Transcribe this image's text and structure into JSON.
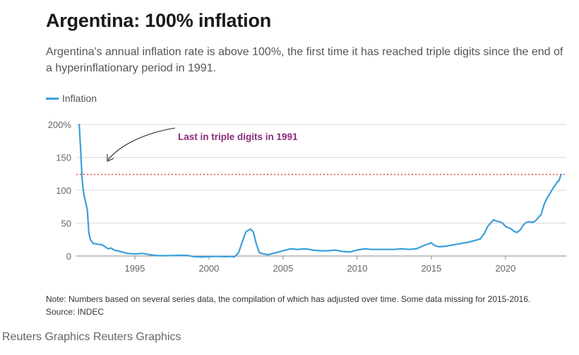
{
  "title": "Argentina: 100% inflation",
  "subtitle": "Argentina's annual inflation rate is above 100%, the first time it has reached triple digits since the end of a hyperinflationary period in 1991.",
  "note": "Note: Numbers based on several series data, the compilation of which has adjusted over time. Some data missing for 2015-2016.",
  "source": "Source: INDEC",
  "credit": "Reuters Graphics Reuters Graphics",
  "colors": {
    "line": "#3a9fd9",
    "annotation": "#8a2b7d",
    "threshold": "#e0484d",
    "grid": "#d9d9d9",
    "axis": "#666666"
  },
  "chart_data": {
    "type": "line",
    "title": "Argentina: 100% inflation",
    "xlabel": "",
    "ylabel": "",
    "xlim": [
      1991.05,
      2024.1
    ],
    "ylim": [
      0,
      200
    ],
    "yticks": [
      {
        "value": 0,
        "label": "0"
      },
      {
        "value": 50,
        "label": "50"
      },
      {
        "value": 100,
        "label": "100"
      },
      {
        "value": 150,
        "label": "150"
      },
      {
        "value": 200,
        "label": "200%"
      }
    ],
    "xticks": [
      {
        "value": 1995,
        "label": "1995"
      },
      {
        "value": 2000,
        "label": "2000"
      },
      {
        "value": 2005,
        "label": "2005"
      },
      {
        "value": 2010,
        "label": "2010"
      },
      {
        "value": 2015,
        "label": "2015"
      },
      {
        "value": 2020,
        "label": "2020"
      }
    ],
    "grid": true,
    "legend": "top-left",
    "threshold": 124,
    "annotation": {
      "text": "Last in triple digits in 1991"
    },
    "series": [
      {
        "name": "Inflation",
        "points": [
          [
            1991.25,
            200
          ],
          [
            1991.35,
            160
          ],
          [
            1991.45,
            115
          ],
          [
            1991.55,
            95
          ],
          [
            1991.7,
            80
          ],
          [
            1991.8,
            70
          ],
          [
            1991.9,
            35
          ],
          [
            1992.0,
            25
          ],
          [
            1992.2,
            19
          ],
          [
            1992.5,
            18
          ],
          [
            1992.8,
            17
          ],
          [
            1993.0,
            14
          ],
          [
            1993.2,
            11
          ],
          [
            1993.4,
            12
          ],
          [
            1993.6,
            9
          ],
          [
            1994.0,
            7
          ],
          [
            1994.5,
            4
          ],
          [
            1995.0,
            3
          ],
          [
            1995.5,
            4
          ],
          [
            1996.0,
            2
          ],
          [
            1996.5,
            0.5
          ],
          [
            1997.0,
            0.5
          ],
          [
            1997.5,
            0.6
          ],
          [
            1998.0,
            1
          ],
          [
            1998.5,
            1
          ],
          [
            1999.0,
            -1
          ],
          [
            1999.5,
            -1.5
          ],
          [
            2000.0,
            -1
          ],
          [
            2000.5,
            -0.5
          ],
          [
            2001.0,
            -1
          ],
          [
            2001.3,
            -1
          ],
          [
            2001.5,
            -0.5
          ],
          [
            2001.7,
            -1.5
          ],
          [
            2002.0,
            5
          ],
          [
            2002.3,
            25
          ],
          [
            2002.5,
            37
          ],
          [
            2002.8,
            41
          ],
          [
            2003.0,
            36
          ],
          [
            2003.2,
            18
          ],
          [
            2003.4,
            5
          ],
          [
            2003.7,
            3
          ],
          [
            2004.0,
            2
          ],
          [
            2004.5,
            5
          ],
          [
            2005.0,
            8
          ],
          [
            2005.5,
            11
          ],
          [
            2006.0,
            10
          ],
          [
            2006.5,
            11
          ],
          [
            2007.0,
            9
          ],
          [
            2007.5,
            8
          ],
          [
            2008.0,
            8
          ],
          [
            2008.5,
            9
          ],
          [
            2009.0,
            7
          ],
          [
            2009.5,
            6
          ],
          [
            2010.0,
            9
          ],
          [
            2010.5,
            11
          ],
          [
            2011.0,
            10
          ],
          [
            2011.5,
            10
          ],
          [
            2012.0,
            10
          ],
          [
            2012.5,
            10
          ],
          [
            2013.0,
            11
          ],
          [
            2013.5,
            10
          ],
          [
            2014.0,
            11
          ],
          [
            2014.5,
            16
          ],
          [
            2015.0,
            20
          ],
          [
            2015.2,
            16
          ],
          [
            2015.5,
            14
          ],
          [
            2016.0,
            15
          ],
          [
            2016.5,
            17
          ],
          [
            2017.0,
            19
          ],
          [
            2017.5,
            21
          ],
          [
            2018.0,
            24
          ],
          [
            2018.3,
            26
          ],
          [
            2018.6,
            35
          ],
          [
            2018.8,
            45
          ],
          [
            2019.0,
            50
          ],
          [
            2019.2,
            55
          ],
          [
            2019.4,
            53
          ],
          [
            2019.6,
            52
          ],
          [
            2019.8,
            50
          ],
          [
            2020.0,
            45
          ],
          [
            2020.2,
            43
          ],
          [
            2020.4,
            41
          ],
          [
            2020.6,
            37
          ],
          [
            2020.8,
            36
          ],
          [
            2021.0,
            40
          ],
          [
            2021.2,
            47
          ],
          [
            2021.4,
            51
          ],
          [
            2021.6,
            52
          ],
          [
            2021.8,
            51
          ],
          [
            2022.0,
            53
          ],
          [
            2022.2,
            58
          ],
          [
            2022.4,
            63
          ],
          [
            2022.6,
            78
          ],
          [
            2022.8,
            88
          ],
          [
            2023.0,
            95
          ],
          [
            2023.2,
            103
          ],
          [
            2023.4,
            109
          ],
          [
            2023.5,
            113
          ],
          [
            2023.6,
            114
          ],
          [
            2023.7,
            121
          ],
          [
            2023.75,
            124
          ]
        ]
      }
    ]
  }
}
